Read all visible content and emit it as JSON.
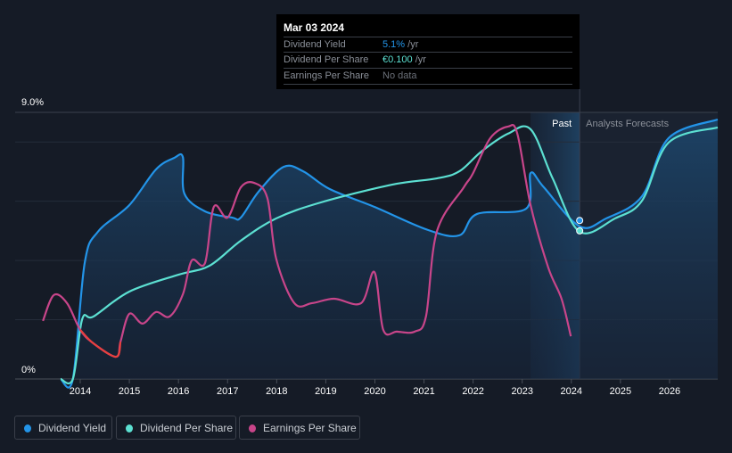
{
  "tooltip": {
    "date": "Mar 03 2024",
    "rows": [
      {
        "label": "Dividend Yield",
        "value": "5.1%",
        "unit": " /yr",
        "color": "#2394e8"
      },
      {
        "label": "Dividend Per Share",
        "value": "€0.100",
        "unit": " /yr",
        "color": "#5ce0d2"
      },
      {
        "label": "Earnings Per Share",
        "value": "No data",
        "unit": "",
        "color": "#6b7079"
      }
    ]
  },
  "legend": [
    {
      "label": "Dividend Yield",
      "color": "#2394e8"
    },
    {
      "label": "Dividend Per Share",
      "color": "#5ce0d2"
    },
    {
      "label": "Earnings Per Share",
      "color": "#c8458a"
    }
  ],
  "chart_data": {
    "type": "line",
    "title": "",
    "xlabel": "",
    "ylabel": "",
    "ylim": [
      0,
      9
    ],
    "xlim": [
      2012.6,
      2027.0
    ],
    "y_tick_labels": [
      "0%",
      "9.0%"
    ],
    "x_ticks": [
      2014,
      2015,
      2016,
      2017,
      2018,
      2019,
      2020,
      2021,
      2022,
      2023,
      2024,
      2025,
      2026
    ],
    "x_tick_labels": [
      "2014",
      "2015",
      "2016",
      "2017",
      "2018",
      "2019",
      "2020",
      "2021",
      "2022",
      "2023",
      "2024",
      "2025",
      "2026"
    ],
    "grid": true,
    "region_labels": {
      "past": "Past",
      "forecast": "Analysts Forecasts"
    },
    "past_band": [
      2023.17,
      2024.17
    ],
    "forecast_start": 2024.17,
    "loss_color": "#e8403f",
    "loss_range": [
      2014.0,
      2014.82
    ],
    "series": [
      {
        "name": "Dividend Yield",
        "color": "#2394e8",
        "filled": true,
        "points": [
          [
            2013.6,
            0
          ],
          [
            2013.85,
            0
          ],
          [
            2014.09,
            3.91
          ],
          [
            2014.36,
            4.97
          ],
          [
            2015.0,
            5.87
          ],
          [
            2015.54,
            7.07
          ],
          [
            2015.91,
            7.46
          ],
          [
            2016.09,
            7.49
          ],
          [
            2016.12,
            6.26
          ],
          [
            2016.54,
            5.66
          ],
          [
            2017.09,
            5.45
          ],
          [
            2017.27,
            5.45
          ],
          [
            2017.63,
            6.32
          ],
          [
            2018.14,
            7.16
          ],
          [
            2018.54,
            7.01
          ],
          [
            2019.08,
            6.41
          ],
          [
            2019.99,
            5.81
          ],
          [
            2021.08,
            5.03
          ],
          [
            2021.72,
            4.85
          ],
          [
            2022.08,
            5.57
          ],
          [
            2023.08,
            5.75
          ],
          [
            2023.17,
            6.95
          ],
          [
            2023.44,
            6.47
          ],
          [
            2024.17,
            5.15
          ],
          [
            2024.71,
            5.42
          ],
          [
            2025.44,
            6.17
          ],
          [
            2025.98,
            8.13
          ],
          [
            2026.98,
            8.76
          ]
        ]
      },
      {
        "name": "Dividend Per Share",
        "color": "#5ce0d2",
        "filled": false,
        "points": [
          [
            2013.6,
            0
          ],
          [
            2013.85,
            0
          ],
          [
            2014.04,
            2.02
          ],
          [
            2014.27,
            2.11
          ],
          [
            2015.0,
            2.95
          ],
          [
            2016.0,
            3.52
          ],
          [
            2016.63,
            3.82
          ],
          [
            2017.27,
            4.67
          ],
          [
            2017.99,
            5.42
          ],
          [
            2018.9,
            5.96
          ],
          [
            2020.35,
            6.56
          ],
          [
            2021.26,
            6.77
          ],
          [
            2021.72,
            7.01
          ],
          [
            2022.17,
            7.68
          ],
          [
            2022.71,
            8.28
          ],
          [
            2023.17,
            8.43
          ],
          [
            2023.62,
            6.77
          ],
          [
            2024.17,
            4.97
          ],
          [
            2024.89,
            5.42
          ],
          [
            2025.44,
            6.02
          ],
          [
            2025.98,
            7.98
          ],
          [
            2026.98,
            8.49
          ]
        ]
      },
      {
        "name": "Earnings Per Share",
        "color": "#c8458a",
        "filled": false,
        "points": [
          [
            2013.24,
            1.96
          ],
          [
            2013.46,
            2.83
          ],
          [
            2013.73,
            2.56
          ],
          [
            2014.0,
            1.66
          ],
          [
            2014.27,
            1.2
          ],
          [
            2014.73,
            0.75
          ],
          [
            2014.82,
            1.26
          ],
          [
            2015.0,
            2.2
          ],
          [
            2015.27,
            1.87
          ],
          [
            2015.54,
            2.26
          ],
          [
            2015.82,
            2.11
          ],
          [
            2016.09,
            2.86
          ],
          [
            2016.27,
            4.0
          ],
          [
            2016.54,
            3.91
          ],
          [
            2016.72,
            5.81
          ],
          [
            2017.0,
            5.45
          ],
          [
            2017.27,
            6.47
          ],
          [
            2017.54,
            6.62
          ],
          [
            2017.81,
            6.11
          ],
          [
            2017.99,
            4.06
          ],
          [
            2018.36,
            2.56
          ],
          [
            2018.72,
            2.56
          ],
          [
            2019.17,
            2.71
          ],
          [
            2019.72,
            2.56
          ],
          [
            2019.99,
            3.61
          ],
          [
            2020.17,
            1.66
          ],
          [
            2020.45,
            1.6
          ],
          [
            2020.81,
            1.6
          ],
          [
            2021.04,
            2.11
          ],
          [
            2021.26,
            4.97
          ],
          [
            2021.81,
            6.47
          ],
          [
            2021.99,
            6.92
          ],
          [
            2022.35,
            8.13
          ],
          [
            2022.71,
            8.52
          ],
          [
            2022.9,
            8.28
          ],
          [
            2023.17,
            5.87
          ],
          [
            2023.53,
            3.76
          ],
          [
            2023.8,
            2.71
          ],
          [
            2023.99,
            1.44
          ]
        ]
      }
    ]
  }
}
